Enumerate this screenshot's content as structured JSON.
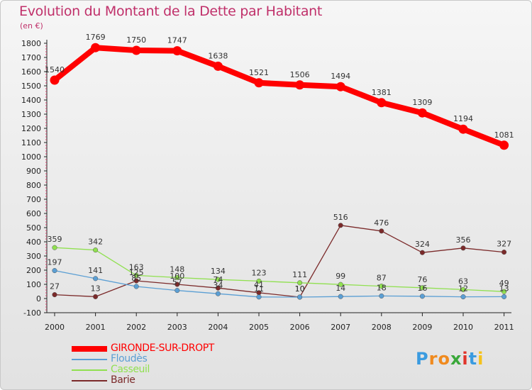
{
  "title": "Evolution du Montant de la Dette par Habitant",
  "subtitle": "(en €)",
  "logo": {
    "letters": [
      "P",
      "r",
      "o",
      "x",
      "i",
      "t",
      "i"
    ],
    "colors": [
      "#3a9be0",
      "#f08a1e",
      "#f08a1e",
      "#3aa83a",
      "#e0352b",
      "#3a9be0",
      "#f5c21b"
    ]
  },
  "chart_data": {
    "type": "line",
    "x": [
      "2000",
      "2001",
      "2002",
      "2003",
      "2004",
      "2005",
      "2006",
      "2007",
      "2008",
      "2009",
      "2010",
      "2011"
    ],
    "ylim": [
      -100,
      1800
    ],
    "yticks": [
      -100,
      0,
      100,
      200,
      300,
      400,
      500,
      600,
      700,
      800,
      900,
      1000,
      1100,
      1200,
      1300,
      1400,
      1500,
      1600,
      1700,
      1800
    ],
    "grid": false,
    "legend_position": "bottom-left",
    "series": [
      {
        "name": "GIRONDE-SUR-DROPT",
        "color": "#ff0000",
        "values": [
          1540,
          1769,
          1750,
          1747,
          1638,
          1521,
          1506,
          1494,
          1381,
          1309,
          1194,
          1081
        ],
        "labels": [
          "1540",
          "1769",
          "1750",
          "1747",
          "1638",
          "1521",
          "1506",
          "1494",
          "1381",
          "1309",
          "1194",
          "1081"
        ]
      },
      {
        "name": "Floudès",
        "color": "#5b9fd4",
        "values": [
          197,
          141,
          85,
          57,
          34,
          11,
          10,
          14,
          18,
          16,
          12,
          13
        ],
        "labels": [
          "197",
          "141",
          "85",
          "57",
          "34",
          "11",
          "10",
          "14",
          "18",
          "16",
          "12",
          "13"
        ]
      },
      {
        "name": "Casseuil",
        "color": "#90e050",
        "values": [
          359,
          342,
          163,
          148,
          134,
          123,
          111,
          99,
          87,
          76,
          63,
          49
        ],
        "labels": [
          "359",
          "342",
          "163",
          "148",
          "134",
          "123",
          "111",
          "99",
          "87",
          "76",
          "63",
          "49"
        ]
      },
      {
        "name": "Barie",
        "color": "#7b2a2a",
        "values": [
          27,
          13,
          125,
          100,
          74,
          41,
          10,
          516,
          476,
          324,
          356,
          327
        ],
        "labels": [
          "27",
          "13",
          "125",
          "100",
          "74",
          "41",
          "10",
          "516",
          "476",
          "324",
          "356",
          "327"
        ]
      }
    ]
  }
}
